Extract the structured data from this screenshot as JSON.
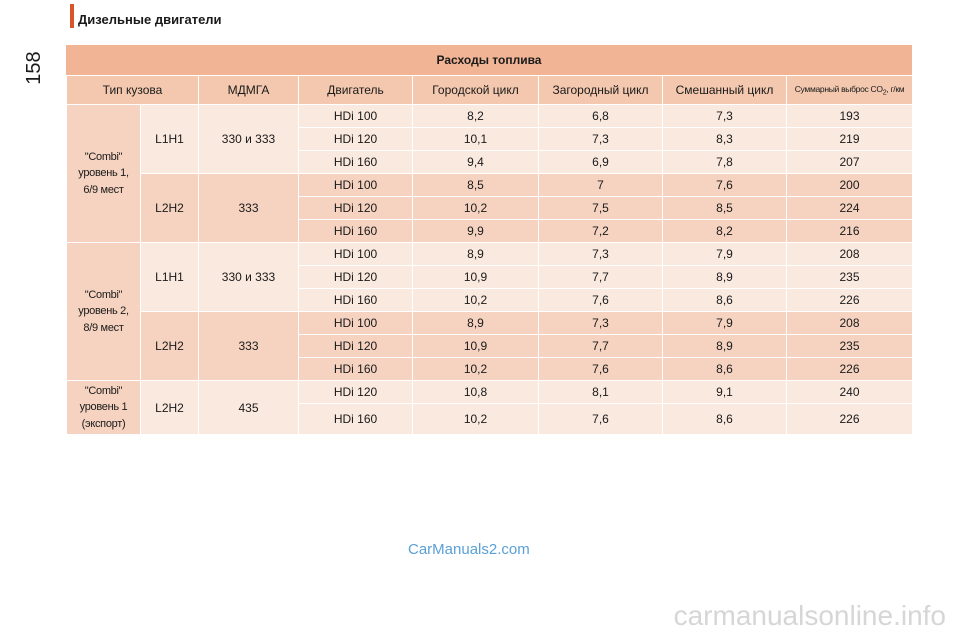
{
  "header": {
    "section_title": "Дизельные двигатели",
    "page_number": "158"
  },
  "table": {
    "title": "Расходы топлива",
    "columns": [
      "Тип кузова",
      "МДМГА",
      "Двигатель",
      "Городской цикл",
      "Загородный цикл",
      "Смешанный цикл"
    ],
    "co2_header": {
      "text": "Суммарный выброс CO",
      "sub": "2",
      "unit": ", г/км"
    },
    "body_types": [
      {
        "label": "\"Combi\"\nуровень 1,\n6/9 мест"
      },
      {
        "label": "\"Combi\"\nуровень 2,\n8/9 мест"
      },
      {
        "label": "\"Combi\"\nуровень 1\n(экспорт)"
      }
    ],
    "groups": [
      {
        "size": "L1H1",
        "mass": "330 и 333"
      },
      {
        "size": "L2H2",
        "mass": "333"
      },
      {
        "size": "L1H1",
        "mass": "330 и 333"
      },
      {
        "size": "L2H2",
        "mass": "333"
      },
      {
        "size": "L2H2",
        "mass": "435"
      }
    ],
    "rows": [
      [
        "HDi 100",
        "8,2",
        "6,8",
        "7,3",
        "193"
      ],
      [
        "HDi 120",
        "10,1",
        "7,3",
        "8,3",
        "219"
      ],
      [
        "HDi 160",
        "9,4",
        "6,9",
        "7,8",
        "207"
      ],
      [
        "HDi 100",
        "8,5",
        "7",
        "7,6",
        "200"
      ],
      [
        "HDi 120",
        "10,2",
        "7,5",
        "8,5",
        "224"
      ],
      [
        "HDi 160",
        "9,9",
        "7,2",
        "8,2",
        "216"
      ],
      [
        "HDi 100",
        "8,9",
        "7,3",
        "7,9",
        "208"
      ],
      [
        "HDi 120",
        "10,9",
        "7,7",
        "8,9",
        "235"
      ],
      [
        "HDi 160",
        "10,2",
        "7,6",
        "8,6",
        "226"
      ],
      [
        "HDi 100",
        "8,9",
        "7,3",
        "7,9",
        "208"
      ],
      [
        "HDi 120",
        "10,9",
        "7,7",
        "8,9",
        "235"
      ],
      [
        "HDi 160",
        "10,2",
        "7,6",
        "8,6",
        "226"
      ],
      [
        "HDi 120",
        "10,8",
        "8,1",
        "9,1",
        "240"
      ],
      [
        "HDi 160",
        "10,2",
        "7,6",
        "8,6",
        "226"
      ]
    ]
  },
  "footer": {
    "logo": "CarManuals2.com",
    "watermark": "carmanualsonline.info"
  },
  "colors": {
    "accent": "#d8572a",
    "title_band": "#f1b596",
    "header_row": "#f3c8ae",
    "row_dark": "#f5d3c0",
    "row_light": "#fae9df",
    "logo": "#5aa0d6"
  }
}
